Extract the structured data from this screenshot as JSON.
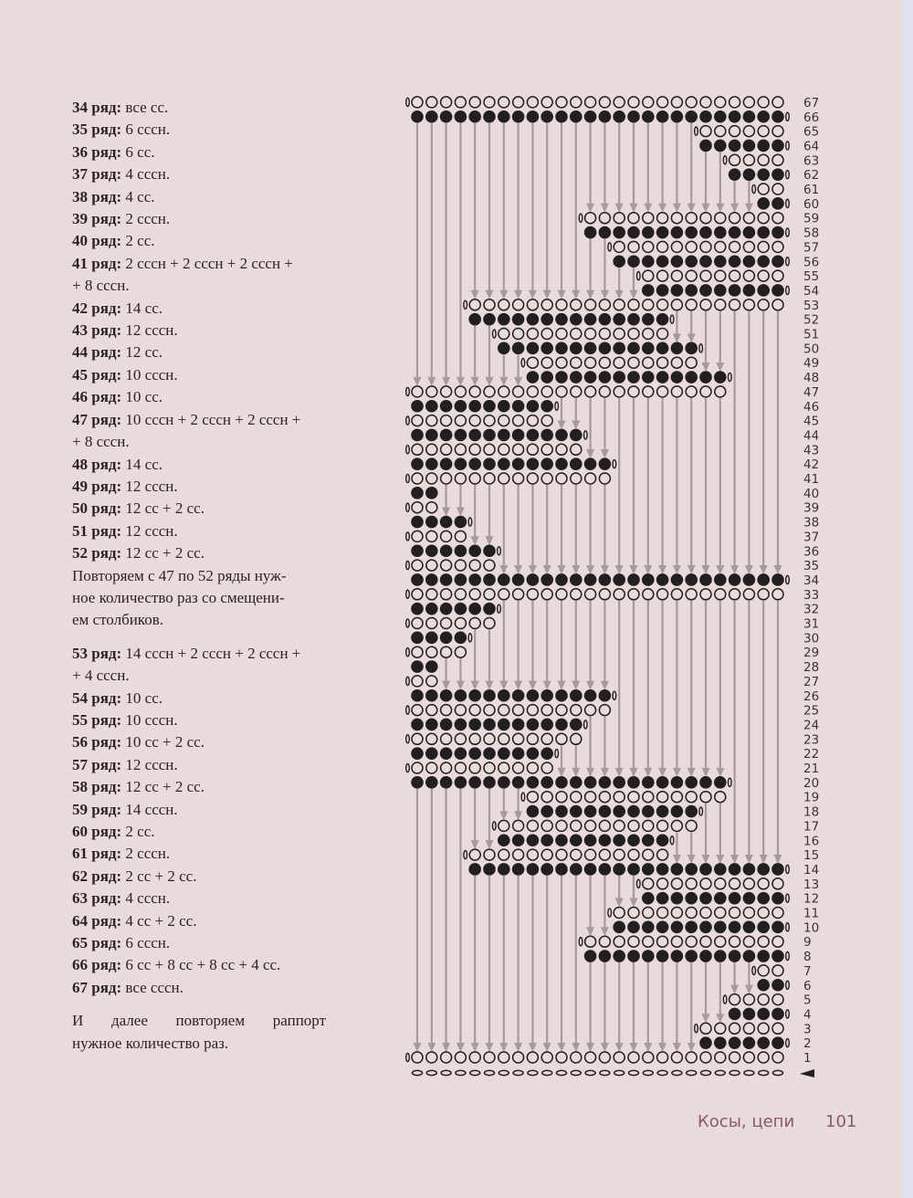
{
  "instructions_a": [
    {
      "b": "34 ряд:",
      "t": " все сс."
    },
    {
      "b": "35 ряд:",
      "t": " 6 сссн."
    },
    {
      "b": "36 ряд:",
      "t": " 6 сс."
    },
    {
      "b": "37 ряд:",
      "t": " 4 сссн."
    },
    {
      "b": "38 ряд:",
      "t": " 4 сс."
    },
    {
      "b": "39 ряд:",
      "t": " 2 сссн."
    },
    {
      "b": "40 ряд:",
      "t": " 2 сс."
    },
    {
      "b": "41 ряд:",
      "t": " 2 сссн + 2 сссн + 2 сссн +",
      "t2": "+ 8 сссн."
    },
    {
      "b": "42 ряд:",
      "t": " 14 сс."
    },
    {
      "b": "43 ряд:",
      "t": " 12 сссн."
    },
    {
      "b": "44 ряд:",
      "t": " 12 сс."
    },
    {
      "b": "45 ряд:",
      "t": " 10 сссн."
    },
    {
      "b": "46 ряд:",
      "t": " 10 сс."
    },
    {
      "b": "47 ряд:",
      "t": " 10 сссн + 2 сссн + 2 сссн +",
      "t2": "+ 8 сссн."
    },
    {
      "b": "48 ряд:",
      "t": " 14 сс."
    },
    {
      "b": "49 ряд:",
      "t": " 12 сссн."
    },
    {
      "b": "50 ряд:",
      "t": " 12 сс + 2 сс."
    },
    {
      "b": "51 ряд:",
      "t": " 12 сссн."
    },
    {
      "b": "52 ряд:",
      "t": " 12 сс + 2 сс."
    }
  ],
  "repeat_note": [
    "Повторяем с 47 по 52 ряды нуж-",
    "ное количество раз со смещени-",
    "ем столбиков."
  ],
  "instructions_b": [
    {
      "b": "53 ряд:",
      "t": " 14 сссн + 2 сссн + 2 сссн +",
      "t2": "+ 4 сссн."
    },
    {
      "b": "54 ряд:",
      "t": " 10 сс."
    },
    {
      "b": "55 ряд:",
      "t": " 10 сссн."
    },
    {
      "b": "56 ряд:",
      "t": " 10 сс + 2 сс."
    },
    {
      "b": "57 ряд:",
      "t": " 12 сссн."
    },
    {
      "b": "58 ряд:",
      "t": " 12 сс + 2 сс."
    },
    {
      "b": "59 ряд:",
      "t": " 14 сссн."
    },
    {
      "b": "60 ряд:",
      "t": " 2 сс."
    },
    {
      "b": "61 ряд:",
      "t": " 2 сссн."
    },
    {
      "b": "62 ряд:",
      "t": " 2 сс + 2 сс."
    },
    {
      "b": "63 ряд:",
      "t": " 4 сссн."
    },
    {
      "b": "64 ряд:",
      "t": " 4 сс + 2 сс."
    },
    {
      "b": "65 ряд:",
      "t": " 6 сссн."
    },
    {
      "b": "66 ряд:",
      "t": " 6 сс + 8 сс + 8 сс + 4 сс."
    },
    {
      "b": "67 ряд:",
      "t": " все сссн."
    }
  ],
  "final_note": [
    "И далее повторяем раппорт",
    "нужное количество раз."
  ],
  "footer": {
    "section": "Косы, цепи",
    "page": "101"
  },
  "colors": {
    "background": "#e9dadb",
    "stitch": "#231f20",
    "arrow": "#a89a9c",
    "footer": "#8a5a6a"
  },
  "chart_data": {
    "type": "stitch-chart",
    "columns": 26,
    "legend": {
      "open": "сссн (open circle)",
      "filled": "сс (filled circle)"
    },
    "rows": [
      [
        1,
        "open",
        0,
        25
      ],
      [
        2,
        "filled",
        20,
        25
      ],
      [
        3,
        "open",
        20,
        25
      ],
      [
        4,
        "filled",
        22,
        25
      ],
      [
        5,
        "open",
        22,
        25
      ],
      [
        6,
        "filled",
        24,
        25
      ],
      [
        7,
        "open",
        24,
        25
      ],
      [
        8,
        "filled",
        12,
        25
      ],
      [
        9,
        "open",
        12,
        25
      ],
      [
        10,
        "filled",
        14,
        25
      ],
      [
        11,
        "open",
        14,
        25
      ],
      [
        12,
        "filled",
        16,
        25
      ],
      [
        13,
        "open",
        16,
        25
      ],
      [
        14,
        "filled",
        4,
        25
      ],
      [
        15,
        "open",
        4,
        17
      ],
      [
        16,
        "filled",
        6,
        17
      ],
      [
        17,
        "open",
        6,
        19
      ],
      [
        18,
        "filled",
        8,
        19
      ],
      [
        19,
        "open",
        8,
        21
      ],
      [
        20,
        "filled",
        0,
        21
      ],
      [
        21,
        "open",
        0,
        9
      ],
      [
        22,
        "filled",
        0,
        9
      ],
      [
        23,
        "open",
        0,
        11
      ],
      [
        24,
        "filled",
        0,
        11
      ],
      [
        25,
        "open",
        0,
        13
      ],
      [
        26,
        "filled",
        0,
        13
      ],
      [
        27,
        "open",
        0,
        1
      ],
      [
        28,
        "filled",
        0,
        1
      ],
      [
        29,
        "open",
        0,
        3
      ],
      [
        30,
        "filled",
        0,
        3
      ],
      [
        31,
        "open",
        0,
        5
      ],
      [
        32,
        "filled",
        0,
        5
      ],
      [
        33,
        "open",
        0,
        25
      ],
      [
        34,
        "filled",
        0,
        25
      ],
      [
        35,
        "open",
        0,
        5
      ],
      [
        36,
        "filled",
        0,
        5
      ],
      [
        37,
        "open",
        0,
        3
      ],
      [
        38,
        "filled",
        0,
        3
      ],
      [
        39,
        "open",
        0,
        1
      ],
      [
        40,
        "filled",
        0,
        1
      ],
      [
        41,
        "open",
        0,
        13
      ],
      [
        42,
        "filled",
        0,
        13
      ],
      [
        43,
        "open",
        0,
        11
      ],
      [
        44,
        "filled",
        0,
        11
      ],
      [
        45,
        "open",
        0,
        9
      ],
      [
        46,
        "filled",
        0,
        9
      ],
      [
        47,
        "open",
        0,
        21
      ],
      [
        48,
        "filled",
        8,
        21
      ],
      [
        49,
        "open",
        8,
        19
      ],
      [
        50,
        "filled",
        6,
        19
      ],
      [
        51,
        "open",
        6,
        17
      ],
      [
        52,
        "filled",
        4,
        17
      ],
      [
        53,
        "open",
        4,
        25
      ],
      [
        54,
        "filled",
        16,
        25
      ],
      [
        55,
        "open",
        16,
        25
      ],
      [
        56,
        "filled",
        14,
        25
      ],
      [
        57,
        "open",
        14,
        25
      ],
      [
        58,
        "filled",
        12,
        25
      ],
      [
        59,
        "open",
        12,
        25
      ],
      [
        60,
        "filled",
        24,
        25
      ],
      [
        61,
        "open",
        24,
        25
      ],
      [
        62,
        "filled",
        22,
        25
      ],
      [
        63,
        "open",
        22,
        25
      ],
      [
        64,
        "filled",
        20,
        25
      ],
      [
        65,
        "open",
        20,
        25
      ],
      [
        66,
        "filled",
        0,
        25
      ],
      [
        67,
        "open",
        0,
        25
      ]
    ]
  }
}
